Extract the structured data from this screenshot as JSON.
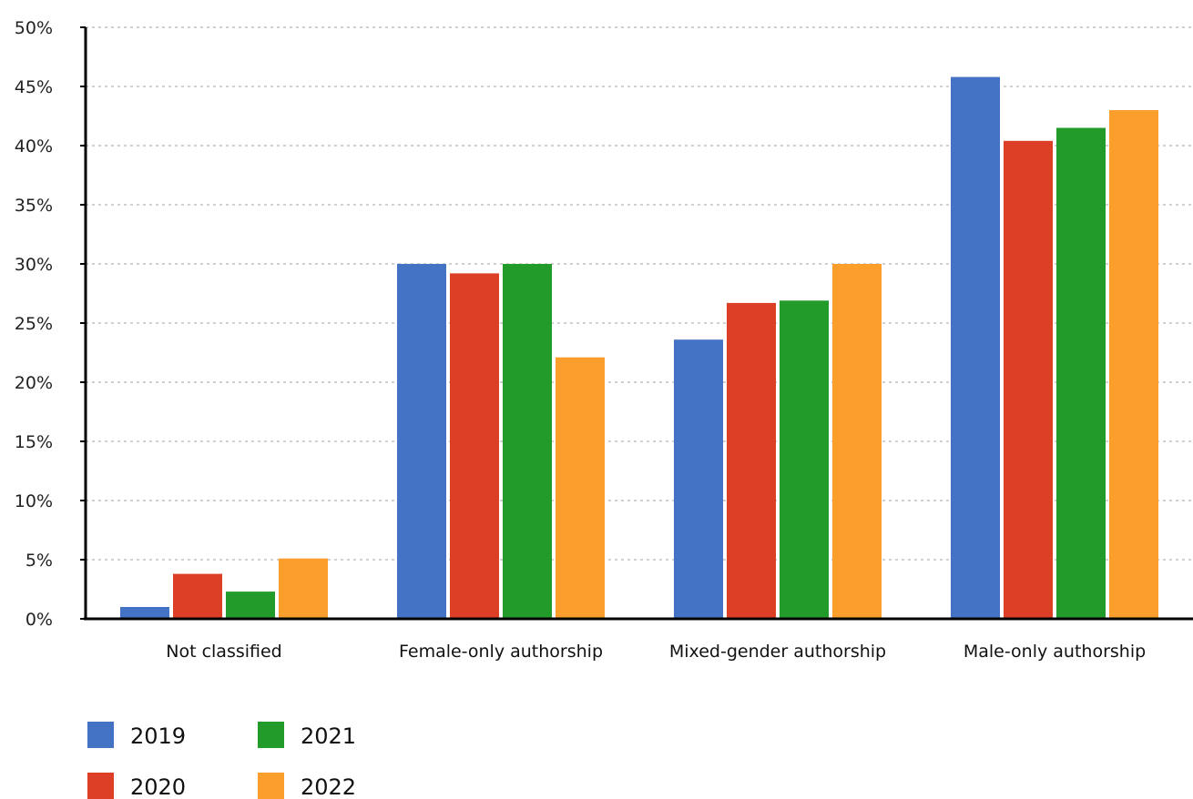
{
  "chart_data": {
    "type": "bar",
    "title": "",
    "xlabel": "",
    "ylabel": "",
    "categories": [
      "Not classified",
      "Female-only authorship",
      "Mixed-gender authorship",
      "Male-only authorship"
    ],
    "series": [
      {
        "name": "2019",
        "color": "#4472c4",
        "values": [
          1.0,
          30.0,
          23.6,
          45.8
        ]
      },
      {
        "name": "2020",
        "color": "#dc3f25",
        "values": [
          3.8,
          29.2,
          26.7,
          40.4
        ]
      },
      {
        "name": "2021",
        "color": "#239b2a",
        "values": [
          2.3,
          30.0,
          26.9,
          41.5
        ]
      },
      {
        "name": "2022",
        "color": "#fb9e2b",
        "values": [
          5.1,
          22.1,
          30.0,
          43.0
        ]
      }
    ],
    "ylim": [
      0,
      50
    ],
    "yticks": [
      "0%",
      "5%",
      "10%",
      "15%",
      "20%",
      "25%",
      "30%",
      "35%",
      "40%",
      "45%",
      "50%"
    ],
    "grid": true,
    "legend_position": "bottom-left"
  }
}
